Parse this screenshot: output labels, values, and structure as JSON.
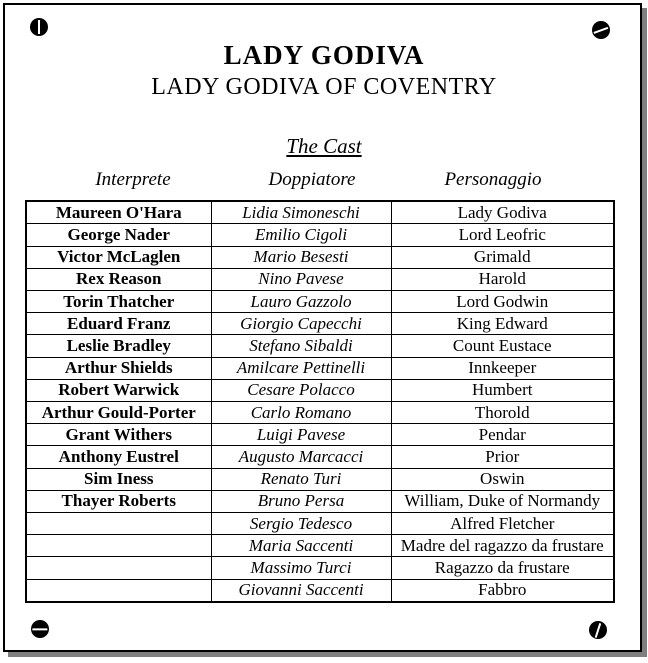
{
  "colors": {
    "text": "#000000",
    "frame_border": "#000000",
    "frame_shadow": "#7f7f7f",
    "background": "#ffffff"
  },
  "header": {
    "title": "LADY GODIVA",
    "subtitle": "LADY GODIVA OF COVENTRY",
    "section_heading": "The Cast"
  },
  "cast_table": {
    "columns": [
      "Interprete",
      "Doppiatore",
      "Personaggio"
    ],
    "rows": [
      {
        "interprete": "Maureen O'Hara",
        "doppiatore": "Lidia Simoneschi",
        "personaggio": "Lady Godiva",
        "personaggio_small": false
      },
      {
        "interprete": "George Nader",
        "doppiatore": "Emilio Cigoli",
        "personaggio": "Lord Leofric",
        "personaggio_small": false
      },
      {
        "interprete": "Victor McLaglen",
        "doppiatore": "Mario Besesti",
        "personaggio": "Grimald",
        "personaggio_small": false
      },
      {
        "interprete": "Rex Reason",
        "doppiatore": "Nino Pavese",
        "personaggio": "Harold",
        "personaggio_small": false
      },
      {
        "interprete": "Torin Thatcher",
        "doppiatore": "Lauro Gazzolo",
        "personaggio": "Lord Godwin",
        "personaggio_small": false
      },
      {
        "interprete": "Eduard Franz",
        "doppiatore": "Giorgio Capecchi",
        "personaggio": "King Edward",
        "personaggio_small": false
      },
      {
        "interprete": "Leslie Bradley",
        "doppiatore": "Stefano Sibaldi",
        "personaggio": "Count Eustace",
        "personaggio_small": false
      },
      {
        "interprete": "Arthur Shields",
        "doppiatore": "Amilcare Pettinelli",
        "personaggio": "Innkeeper",
        "personaggio_small": false
      },
      {
        "interprete": "Robert Warwick",
        "doppiatore": "Cesare Polacco",
        "personaggio": "Humbert",
        "personaggio_small": false
      },
      {
        "interprete": "Arthur Gould-Porter",
        "doppiatore": "Carlo Romano",
        "personaggio": "Thorold",
        "personaggio_small": false
      },
      {
        "interprete": "Grant Withers",
        "doppiatore": "Luigi Pavese",
        "personaggio": "Pendar",
        "personaggio_small": false
      },
      {
        "interprete": "Anthony Eustrel",
        "doppiatore": "Augusto Marcacci",
        "personaggio": "Prior",
        "personaggio_small": false
      },
      {
        "interprete": "Sim Iness",
        "doppiatore": "Renato Turi",
        "personaggio": "Oswin",
        "personaggio_small": false
      },
      {
        "interprete": "Thayer Roberts",
        "doppiatore": "Bruno Persa",
        "personaggio": "William, Duke of Normandy",
        "personaggio_small": true
      },
      {
        "interprete": "",
        "doppiatore": "Sergio Tedesco",
        "personaggio": "Alfred Fletcher",
        "personaggio_small": false
      },
      {
        "interprete": "",
        "doppiatore": "Maria Saccenti",
        "personaggio": "Madre del ragazzo da frustare",
        "personaggio_small": true
      },
      {
        "interprete": "",
        "doppiatore": "Massimo Turci",
        "personaggio": "Ragazzo da frustare",
        "personaggio_small": false
      },
      {
        "interprete": "",
        "doppiatore": "Giovanni Saccenti",
        "personaggio": "Fabbro",
        "personaggio_small": false
      }
    ]
  },
  "icons": {
    "screw_top_left": "screw head, vertical slot",
    "screw_top_right": "screw head, diagonal slot",
    "screw_bottom_left": "screw head, horizontal slot",
    "screw_bottom_right": "screw head, near-vertical slot"
  }
}
